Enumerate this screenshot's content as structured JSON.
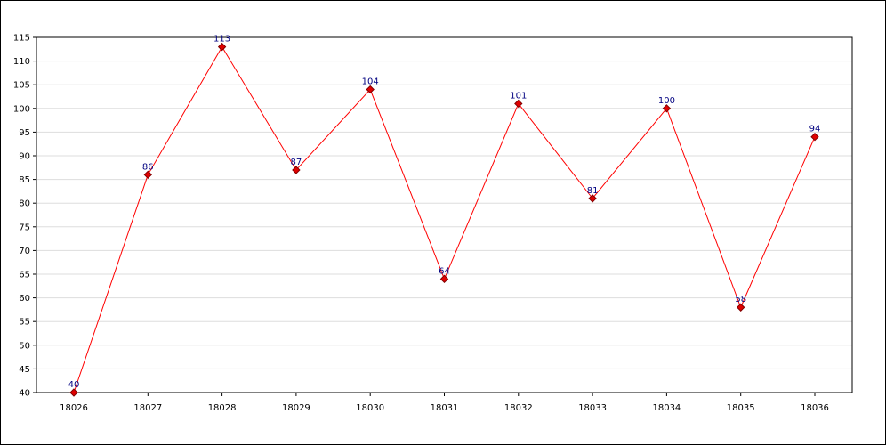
{
  "chart_data": {
    "type": "line",
    "title": "",
    "xlabel": "",
    "ylabel": "",
    "categories": [
      "18026",
      "18027",
      "18028",
      "18029",
      "18030",
      "18031",
      "18032",
      "18033",
      "18034",
      "18035",
      "18036"
    ],
    "series": [
      {
        "values": [
          40,
          86,
          113,
          87,
          104,
          64,
          101,
          81,
          100,
          58,
          94
        ]
      }
    ],
    "ylim": [
      40,
      115
    ],
    "yticks": [
      40,
      45,
      50,
      55,
      60,
      65,
      70,
      75,
      80,
      85,
      90,
      95,
      100,
      105,
      110,
      115
    ],
    "grid": "horizontal",
    "legend": "none",
    "data_labels": true,
    "colors": {
      "line": "#ff0000",
      "marker_fill": "#e00000",
      "marker_stroke": "#800000",
      "label": "#000080",
      "grid": "#dddddd",
      "axis": "#000000"
    }
  }
}
